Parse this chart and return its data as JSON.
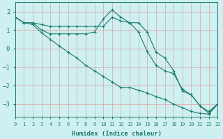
{
  "xlabel": "Humidex (Indice chaleur)",
  "ylabel": "",
  "bg_color": "#cff0f0",
  "line_color": "#1a7a6e",
  "grid_color": "#dea0a0",
  "x_min": 0,
  "x_max": 23,
  "y_min": -3.7,
  "y_max": 2.5,
  "yticks": [
    -3,
    -2,
    -1,
    0,
    1,
    2
  ],
  "xticks": [
    0,
    1,
    2,
    3,
    4,
    5,
    6,
    7,
    8,
    9,
    10,
    11,
    12,
    13,
    14,
    15,
    16,
    17,
    18,
    19,
    20,
    21,
    22,
    23
  ],
  "line1_x": [
    0,
    1,
    2,
    3,
    4,
    5,
    6,
    7,
    8,
    9,
    10,
    11,
    12,
    13,
    14,
    15,
    16,
    17,
    18,
    19,
    20,
    21,
    22,
    23
  ],
  "line1_y": [
    1.7,
    1.4,
    1.4,
    1.3,
    1.2,
    1.2,
    1.2,
    1.2,
    1.2,
    1.2,
    1.2,
    1.7,
    1.5,
    1.4,
    1.4,
    0.9,
    -0.2,
    -0.5,
    -1.2,
    -2.3,
    -2.5,
    -3.1,
    -3.4,
    -3.0
  ],
  "line2_x": [
    0,
    1,
    2,
    3,
    4,
    5,
    6,
    7,
    8,
    9,
    10,
    11,
    12,
    13,
    14,
    15,
    16,
    17,
    18,
    19,
    20,
    21,
    22,
    23
  ],
  "line2_y": [
    1.7,
    1.4,
    1.4,
    1.0,
    0.8,
    0.8,
    0.8,
    0.8,
    0.8,
    0.9,
    1.6,
    2.1,
    1.7,
    1.4,
    0.9,
    -0.15,
    -0.9,
    -1.2,
    -1.35,
    -2.2,
    -2.5,
    -3.1,
    -3.5,
    -3.0
  ],
  "line3_x": [
    0,
    1,
    2,
    3,
    4,
    5,
    6,
    7,
    8,
    9,
    10,
    11,
    12,
    13,
    14,
    15,
    16,
    17,
    18,
    19,
    20,
    21,
    22,
    23
  ],
  "line3_y": [
    1.7,
    1.4,
    1.3,
    0.85,
    0.5,
    0.15,
    -0.2,
    -0.5,
    -0.9,
    -1.2,
    -1.5,
    -1.8,
    -2.1,
    -2.1,
    -2.25,
    -2.4,
    -2.6,
    -2.75,
    -3.0,
    -3.2,
    -3.4,
    -3.5,
    -3.55,
    -3.0
  ]
}
